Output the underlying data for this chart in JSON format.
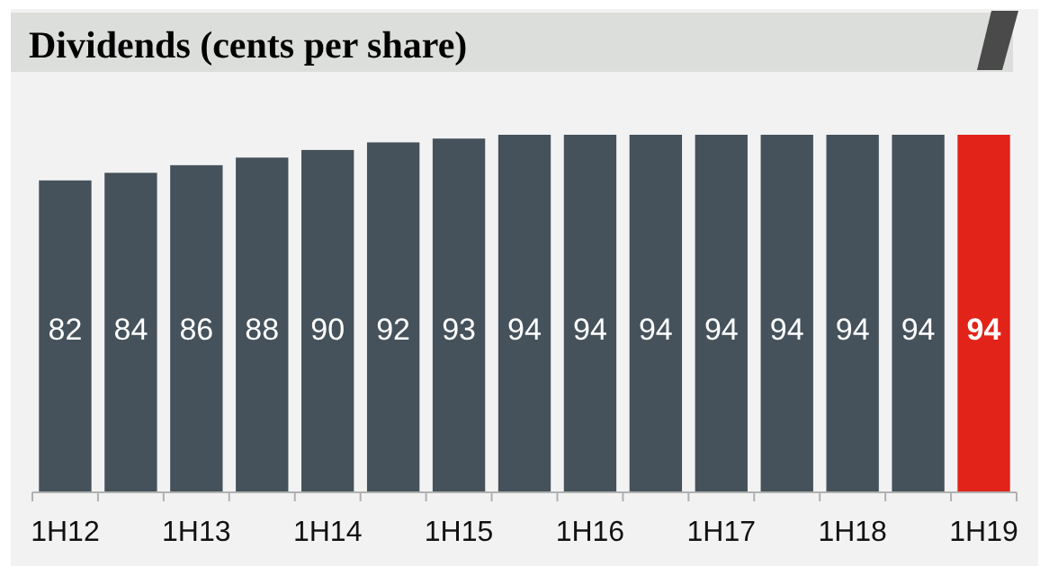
{
  "chart_data": {
    "type": "bar",
    "title": "Dividends (cents per share)",
    "categories": [
      "1H12",
      null,
      "1H13",
      null,
      "1H14",
      null,
      "1H15",
      null,
      "1H16",
      null,
      "1H17",
      null,
      "1H18",
      null,
      "1H19"
    ],
    "values": [
      82,
      84,
      86,
      88,
      90,
      92,
      93,
      94,
      94,
      94,
      94,
      94,
      94,
      94,
      94
    ],
    "colors": [
      "#45525b",
      "#45525b",
      "#45525b",
      "#45525b",
      "#45525b",
      "#45525b",
      "#45525b",
      "#45525b",
      "#45525b",
      "#45525b",
      "#45525b",
      "#45525b",
      "#45525b",
      "#45525b",
      "#e2231a"
    ],
    "data_labels": true
  }
}
